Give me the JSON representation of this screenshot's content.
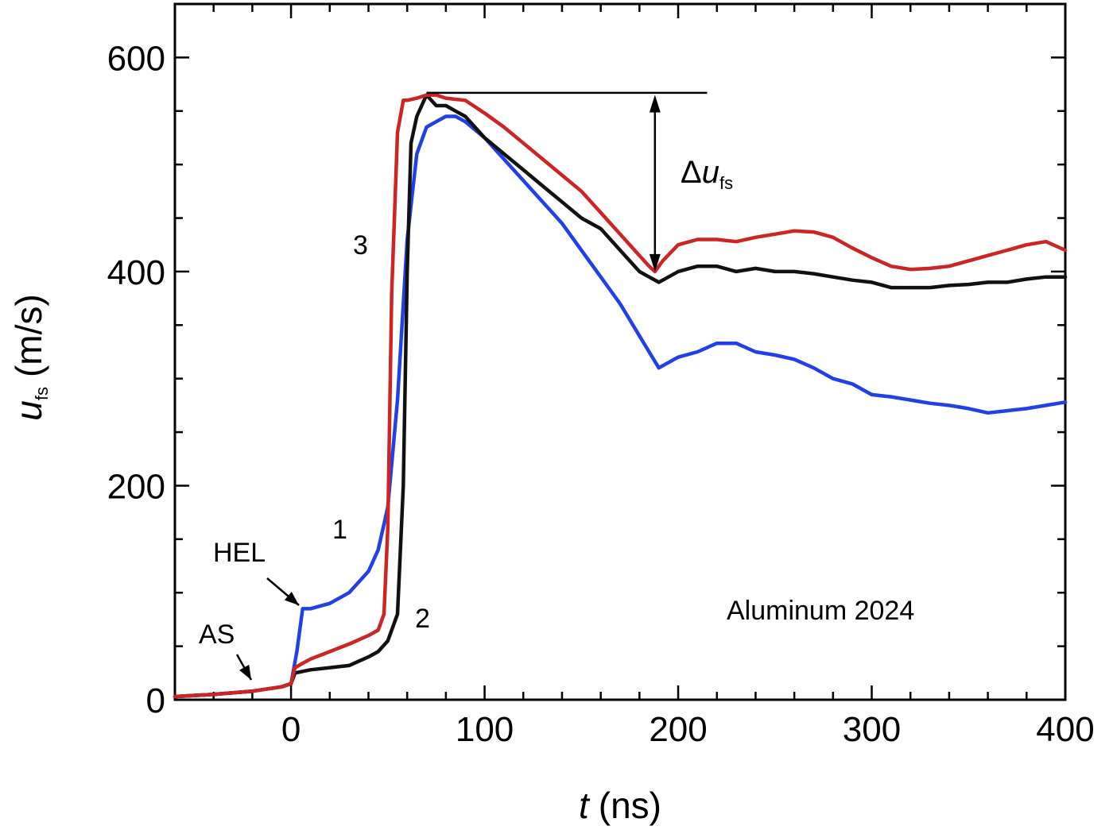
{
  "chart_data": {
    "type": "line",
    "title": "",
    "xlabel": {
      "symbol": "t",
      "unit": "(ns)"
    },
    "ylabel": {
      "symbol": "u",
      "subscript": "fs",
      "unit": "(m/s)"
    },
    "xlim": [
      -60,
      400
    ],
    "ylim": [
      0,
      650
    ],
    "xticks": [
      0,
      100,
      200,
      300,
      400
    ],
    "xtick_labels": [
      "0",
      "100",
      "200",
      "300",
      "400"
    ],
    "yticks": [
      0,
      200,
      400,
      600
    ],
    "ytick_labels": [
      "0",
      "200",
      "400",
      "600"
    ],
    "x_minor_step": 20,
    "y_minor_step": 50,
    "grid": false,
    "legend": "none",
    "series": [
      {
        "label": "1",
        "color": "#2340e8",
        "x": [
          -60,
          -40,
          -20,
          -5,
          0,
          3,
          6,
          10,
          20,
          30,
          40,
          45,
          50,
          55,
          60,
          65,
          70,
          75,
          80,
          85,
          90,
          100,
          110,
          120,
          130,
          140,
          150,
          160,
          170,
          180,
          185,
          190,
          200,
          210,
          220,
          230,
          240,
          250,
          260,
          270,
          280,
          290,
          300,
          310,
          320,
          330,
          340,
          350,
          360,
          370,
          380,
          390,
          400
        ],
        "y": [
          3,
          5,
          8,
          12,
          15,
          45,
          85,
          85,
          90,
          100,
          120,
          140,
          180,
          280,
          430,
          510,
          535,
          540,
          545,
          545,
          540,
          525,
          505,
          485,
          465,
          445,
          420,
          395,
          370,
          340,
          325,
          310,
          320,
          325,
          333,
          333,
          325,
          322,
          318,
          310,
          300,
          295,
          285,
          283,
          280,
          277,
          275,
          272,
          268,
          270,
          272,
          275,
          278
        ]
      },
      {
        "label": "2",
        "color": "#111111",
        "x": [
          -60,
          -40,
          -20,
          -5,
          0,
          2,
          10,
          20,
          30,
          40,
          45,
          50,
          55,
          58,
          60,
          62,
          65,
          70,
          75,
          80,
          85,
          90,
          100,
          110,
          120,
          130,
          140,
          150,
          160,
          170,
          180,
          185,
          190,
          195,
          200,
          210,
          220,
          230,
          240,
          250,
          260,
          270,
          280,
          290,
          300,
          310,
          320,
          330,
          340,
          350,
          360,
          370,
          380,
          390,
          400
        ],
        "y": [
          3,
          5,
          8,
          12,
          15,
          25,
          28,
          30,
          32,
          40,
          45,
          55,
          80,
          200,
          400,
          520,
          545,
          565,
          555,
          555,
          550,
          545,
          525,
          510,
          495,
          480,
          465,
          450,
          440,
          420,
          400,
          395,
          390,
          395,
          400,
          405,
          405,
          400,
          403,
          400,
          400,
          398,
          395,
          392,
          390,
          385,
          385,
          385,
          387,
          388,
          390,
          390,
          393,
          395,
          395
        ]
      },
      {
        "label": "3",
        "color": "#cc2525",
        "x": [
          -60,
          -40,
          -20,
          -5,
          0,
          2,
          10,
          20,
          30,
          40,
          45,
          48,
          50,
          52,
          55,
          58,
          60,
          65,
          70,
          75,
          80,
          90,
          100,
          110,
          120,
          130,
          140,
          150,
          160,
          170,
          180,
          185,
          188,
          192,
          200,
          210,
          220,
          230,
          240,
          250,
          260,
          270,
          280,
          290,
          300,
          310,
          320,
          330,
          340,
          350,
          360,
          370,
          380,
          390,
          400
        ],
        "y": [
          3,
          5,
          8,
          12,
          15,
          30,
          38,
          45,
          52,
          60,
          65,
          80,
          160,
          380,
          530,
          560,
          560,
          562,
          565,
          565,
          562,
          560,
          548,
          535,
          520,
          505,
          490,
          475,
          455,
          435,
          415,
          405,
          400,
          410,
          425,
          430,
          430,
          428,
          432,
          435,
          438,
          437,
          432,
          422,
          413,
          405,
          402,
          403,
          405,
          410,
          415,
          420,
          425,
          428,
          420
        ]
      }
    ],
    "annotations": {
      "curve_label_1": "1",
      "curve_label_2": "2",
      "curve_label_3": "3",
      "hel_label": "HEL",
      "as_label": "AS",
      "delta_symbol": "Δ",
      "delta_var": "u",
      "delta_sub": "fs",
      "material": "Aluminum 2024"
    }
  }
}
